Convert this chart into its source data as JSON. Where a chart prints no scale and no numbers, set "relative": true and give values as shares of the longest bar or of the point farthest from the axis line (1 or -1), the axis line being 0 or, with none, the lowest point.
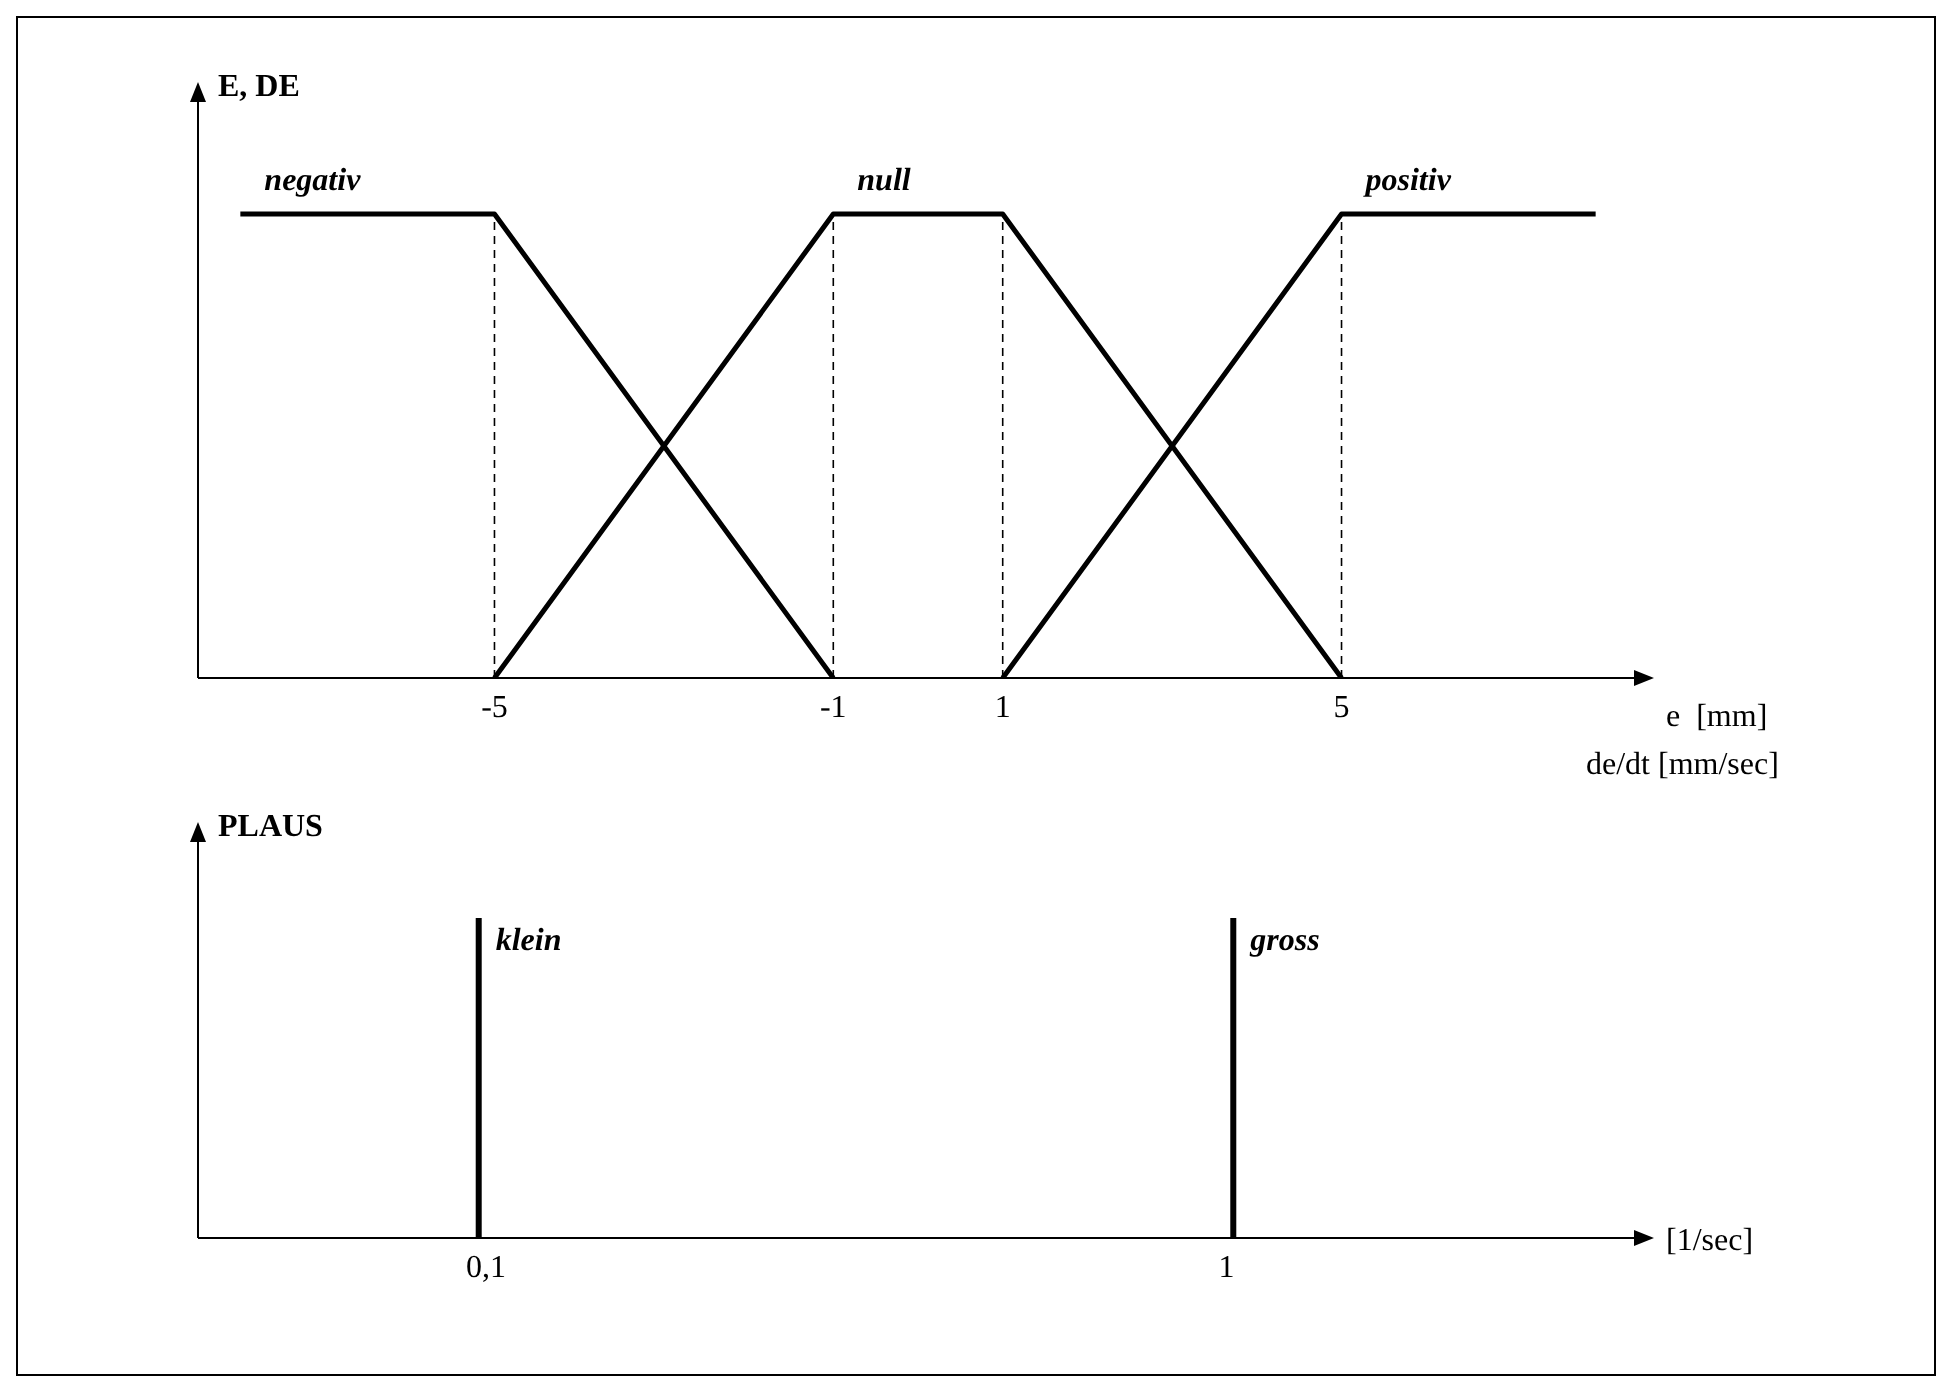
{
  "chart_data": [
    {
      "type": "line",
      "relative": true,
      "ylabel": "E, DE",
      "xlabel": "e  [mm]",
      "annotations": [
        "de/dt [mm/sec]"
      ],
      "xlim": [
        -8.5,
        8.5
      ],
      "xticks": [
        -5,
        -1,
        1,
        5
      ],
      "marker": "none",
      "line_style": "solid",
      "series": [
        {
          "name": "negativ",
          "color": "#000000",
          "x": [
            -8,
            -5,
            -1
          ],
          "values": [
            1,
            1,
            0
          ]
        },
        {
          "name": "null",
          "color": "#000000",
          "x": [
            -5,
            -1,
            1,
            5
          ],
          "values": [
            0,
            1,
            1,
            0
          ]
        },
        {
          "name": "positiv",
          "color": "#000000",
          "x": [
            1,
            5,
            8
          ],
          "values": [
            0,
            1,
            1
          ]
        }
      ],
      "ref_lines": [
        {
          "axis": "x",
          "value": -5,
          "line_style": "dashed"
        },
        {
          "axis": "x",
          "value": -1,
          "line_style": "dashed"
        },
        {
          "axis": "x",
          "value": 1,
          "line_style": "dashed"
        },
        {
          "axis": "x",
          "value": 5,
          "line_style": "dashed"
        }
      ]
    },
    {
      "type": "bar",
      "relative": true,
      "ylabel": "PLAUS",
      "xlabel": "[1/sec]",
      "xlim": [
        -0.25,
        1.5
      ],
      "xticks": [
        {
          "value": 0.1,
          "label": "0,1"
        },
        1
      ],
      "series": [
        {
          "name": "klein",
          "color": "#000000",
          "x": [
            0.1
          ],
          "values": [
            1
          ]
        },
        {
          "name": "gross",
          "color": "#000000",
          "x": [
            1
          ],
          "values": [
            1
          ]
        }
      ]
    }
  ]
}
